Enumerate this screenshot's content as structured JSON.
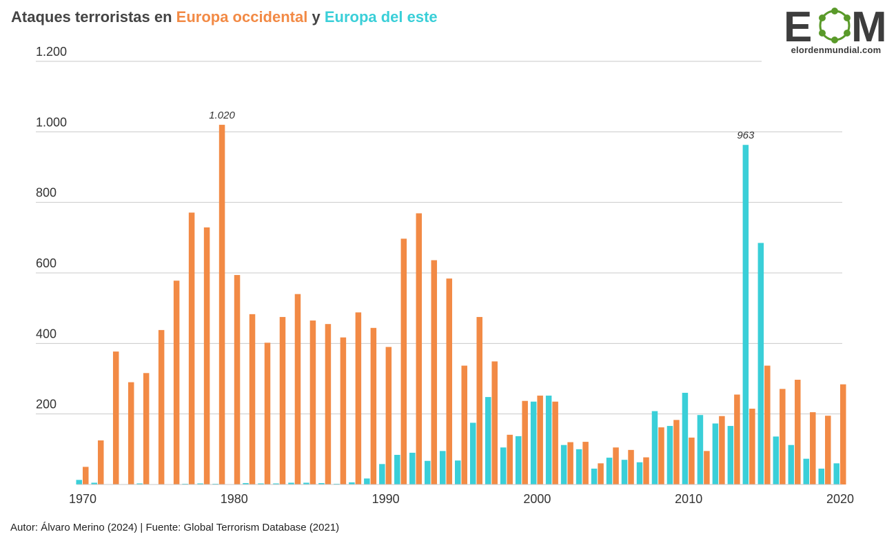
{
  "title": {
    "prefix": "Ataques terroristas en ",
    "series1": "Europa occidental",
    "connector": " y ",
    "series2": "Europa del este"
  },
  "logo": {
    "letters_left": "E",
    "letters_right": "M",
    "site": "elordenmundial.com"
  },
  "footer": "Autor: Álvaro Merino (2024) | Fuente: Global Terrorism Database (2021)",
  "colors": {
    "western": "#F28A45",
    "eastern": "#3ACFD8",
    "grid": "#c8c8c8",
    "text": "#333333",
    "logo_dark": "#3d3d3d",
    "logo_green": "#5a9a2a"
  },
  "chart_data": {
    "type": "bar",
    "title": "Ataques terroristas en Europa occidental y Europa del este",
    "xlabel": "",
    "ylabel": "",
    "ylim": [
      0,
      1200
    ],
    "yticks": [
      200,
      400,
      600,
      800,
      1000,
      1200
    ],
    "ytick_labels": [
      "200",
      "400",
      "600",
      "800",
      "1.000",
      "1.200"
    ],
    "xtick_labels": [
      "1970",
      "1980",
      "1990",
      "2000",
      "2010",
      "2020"
    ],
    "categories": [
      1970,
      1971,
      1972,
      1973,
      1974,
      1975,
      1976,
      1977,
      1978,
      1979,
      1980,
      1981,
      1982,
      1983,
      1984,
      1985,
      1986,
      1987,
      1988,
      1989,
      1990,
      1991,
      1992,
      1993,
      1994,
      1995,
      1996,
      1997,
      1998,
      1999,
      2000,
      2001,
      2002,
      2003,
      2004,
      2005,
      2006,
      2007,
      2008,
      2009,
      2010,
      2011,
      2012,
      2013,
      2014,
      2015,
      2016,
      2017,
      2018,
      2019,
      2020
    ],
    "series": [
      {
        "name": "Europa del este",
        "values": [
          13,
          5,
          1,
          1,
          3,
          0,
          0,
          2,
          3,
          2,
          0,
          4,
          3,
          3,
          5,
          5,
          4,
          2,
          6,
          17,
          58,
          84,
          90,
          67,
          95,
          68,
          175,
          248,
          105,
          137,
          235,
          252,
          112,
          100,
          45,
          76,
          70,
          63,
          208,
          166,
          260,
          197,
          173,
          166,
          963,
          685,
          136,
          112,
          73,
          45,
          60
        ]
      },
      {
        "name": "Europa occidental",
        "values": [
          50,
          125,
          377,
          290,
          316,
          438,
          578,
          771,
          729,
          1020,
          594,
          483,
          402,
          475,
          540,
          465,
          455,
          417,
          488,
          444,
          390,
          697,
          769,
          636,
          584,
          337,
          475,
          349,
          141,
          237,
          252,
          235,
          120,
          121,
          60,
          105,
          98,
          77,
          162,
          183,
          133,
          95,
          194,
          255,
          215,
          337,
          271,
          297,
          205,
          195,
          284
        ]
      }
    ],
    "annotations": [
      {
        "series": "Europa occidental",
        "x": 1979,
        "text": "1.020"
      },
      {
        "series": "Europa del este",
        "x": 2014,
        "text": "963"
      }
    ],
    "grid": true,
    "legend": "in title"
  }
}
